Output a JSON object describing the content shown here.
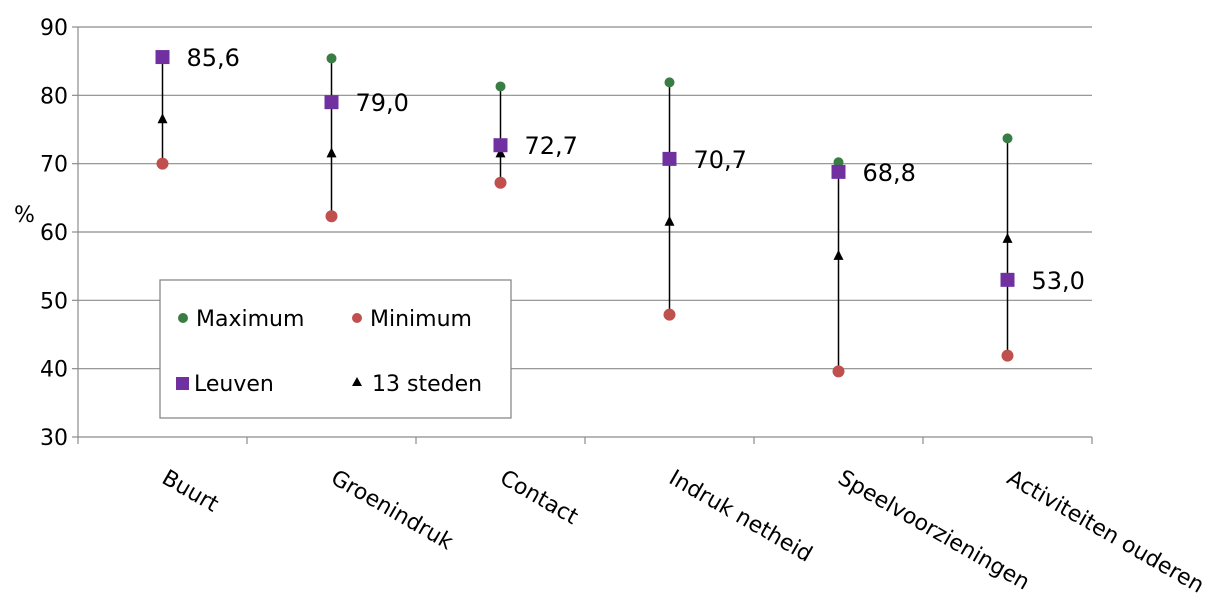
{
  "chart_data": {
    "type": "scatter",
    "title": "",
    "xlabel": "",
    "ylabel": "%",
    "ylim": [
      30,
      90
    ],
    "yticks": [
      30,
      40,
      50,
      60,
      70,
      80,
      90
    ],
    "grid": "horizontal",
    "categories": [
      "Buurt",
      "Groenindruk",
      "Contact",
      "Indruk netheid",
      "Speelvoorzieningen",
      "Activiteiten ouderen"
    ],
    "series": [
      {
        "name": "Maximum",
        "marker": "circle",
        "color": "#3a7d44",
        "values": [
          null,
          85.4,
          81.3,
          81.9,
          70.2,
          73.7
        ]
      },
      {
        "name": "Minimum",
        "marker": "circle",
        "color": "#c0504d",
        "values": [
          70.0,
          62.3,
          67.2,
          47.9,
          39.6,
          41.9
        ]
      },
      {
        "name": "Leuven",
        "marker": "square",
        "color": "#7030a0",
        "values": [
          85.6,
          79.0,
          72.7,
          70.7,
          68.8,
          53.0
        ]
      },
      {
        "name": "13 steden",
        "marker": "triangle",
        "color": "#000000",
        "values": [
          76.5,
          71.5,
          71.5,
          61.5,
          56.5,
          59.0
        ]
      }
    ],
    "data_labels": [
      "85,6",
      "79,0",
      "72,7",
      "70,7",
      "68,8",
      "53,0"
    ],
    "legend": "inside-bottom-left"
  }
}
